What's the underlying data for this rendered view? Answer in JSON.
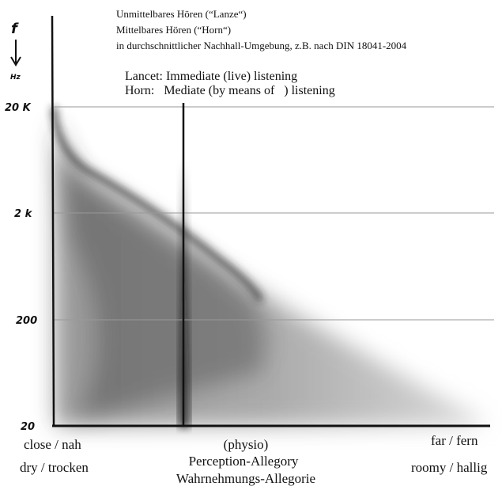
{
  "header": {
    "lines": [
      "Unmittelbares Hören (“Lanze“)",
      "Mittelbares Hören (“Horn“)",
      "in durchschnittlicher Nachhall-Umgebung, z.B. nach DIN 18041-2004"
    ]
  },
  "subheader": {
    "lines": [
      "Lancet: Immediate (live) listening",
      "Horn:   Mediate (by means of   ) listening"
    ]
  },
  "axis": {
    "y_symbol": "f",
    "y_unit": "Hz",
    "ticks": [
      "20 K",
      "2 k",
      "200",
      "20"
    ]
  },
  "x_labels": {
    "left": [
      "close / nah",
      "dry / trocken"
    ],
    "center": [
      "(physio)",
      "Perception-Allegory",
      "Wahrnehmungs-Allegorie"
    ],
    "right": [
      "far / fern",
      "roomy / hallig"
    ]
  }
}
